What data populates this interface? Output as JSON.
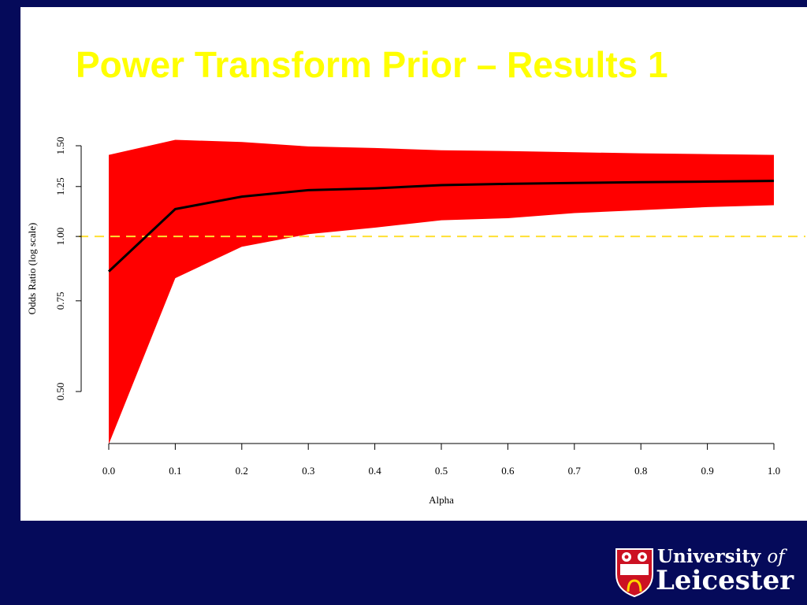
{
  "slide": {
    "title": "Power Transform Prior – Results 1"
  },
  "logo": {
    "line1": "University",
    "line1_of": "of",
    "line2": "Leicester",
    "shield_motto": "VT·VI TAM HABEANT"
  },
  "colors": {
    "background": "#050a5a",
    "title": "#ffff00",
    "band": "#ff0000",
    "line": "#000000",
    "reference": "#ffe033",
    "logo_shield": "#cc1122"
  },
  "chart_data": {
    "type": "area",
    "title": "",
    "xlabel": "Alpha",
    "ylabel": "Odds Ratio (log scale)",
    "x": [
      0.0,
      0.1,
      0.2,
      0.3,
      0.4,
      0.5,
      0.6,
      0.7,
      0.8,
      0.9,
      1.0
    ],
    "x_ticks": [
      "0.0",
      "0.1",
      "0.2",
      "0.3",
      "0.4",
      "0.5",
      "0.6",
      "0.7",
      "0.8",
      "0.9",
      "1.0"
    ],
    "y_ticks": [
      "0.50",
      "0.75",
      "1.00",
      "1.25",
      "1.50"
    ],
    "y_tick_values": [
      0.5,
      0.75,
      1.0,
      1.25,
      1.5
    ],
    "xlim": [
      0.0,
      1.0
    ],
    "ylim_visible": [
      0.45,
      1.55
    ],
    "series": [
      {
        "kind": "band_upper",
        "values": [
          1.44,
          1.54,
          1.525,
          1.495,
          1.485,
          1.47,
          1.465,
          1.457,
          1.45,
          1.445,
          1.44
        ]
      },
      {
        "kind": "band_lower",
        "values": [
          0.395,
          0.83,
          0.955,
          1.01,
          1.04,
          1.075,
          1.085,
          1.11,
          1.125,
          1.14,
          1.15
        ]
      },
      {
        "kind": "estimate",
        "values": [
          0.855,
          1.13,
          1.195,
          1.23,
          1.24,
          1.258,
          1.265,
          1.27,
          1.275,
          1.278,
          1.282
        ]
      }
    ],
    "reference_line": {
      "y": 1.0,
      "style": "dashed"
    },
    "grid": false
  }
}
